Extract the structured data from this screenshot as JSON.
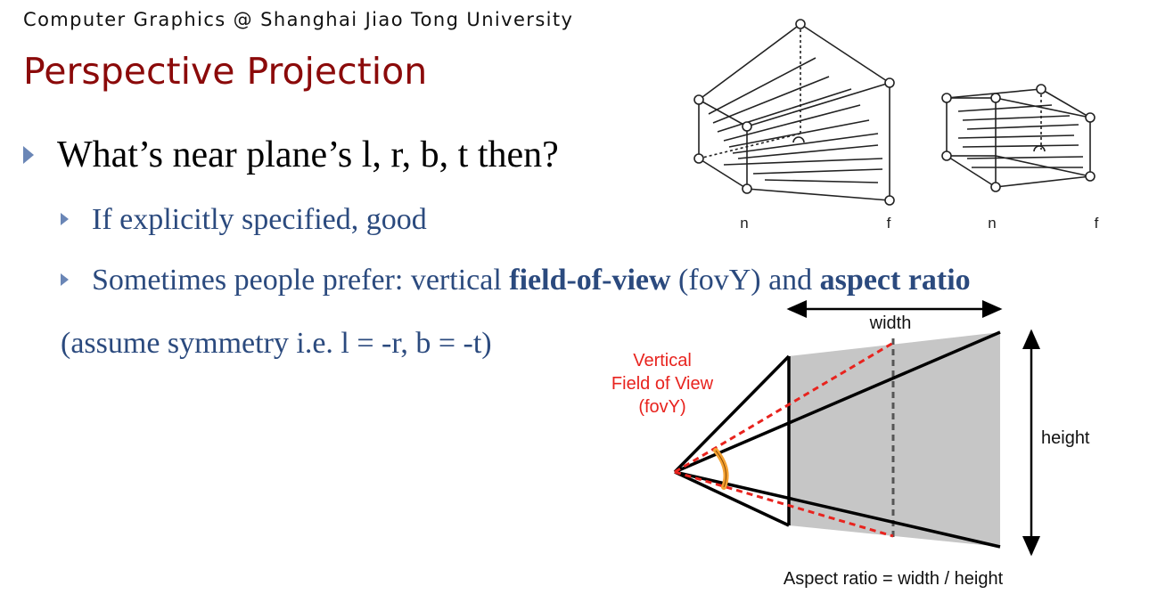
{
  "header": "Computer Graphics @ Shanghai Jiao Tong University",
  "title": "Perspective Projection",
  "bullets": {
    "b1": "What’s near plane’s l, r, b, t then?",
    "b2": "If explicitly specified, good",
    "b3_pre": "Sometimes people prefer: vertical ",
    "b3_bold1": "field-of-view",
    "b3_mid": " (fovY) and ",
    "b3_bold2": "aspect ratio",
    "b4": "(assume symmetry i.e. l = -r, b = -t)"
  },
  "frustum_figure": {
    "label_n1": "n",
    "label_f1": "f",
    "label_n2": "n",
    "label_f2": "f"
  },
  "fov_diagram": {
    "width_label": "width",
    "height_label": "height",
    "fov_label_line1": "Vertical",
    "fov_label_line2": "Field of View",
    "fov_label_line3": "(fovY)",
    "aspect_caption": "Aspect ratio = width / height",
    "fov_color": "#e8231e",
    "shade_color": "#c6c6c6",
    "angle_marker_color": "#f4a233"
  }
}
